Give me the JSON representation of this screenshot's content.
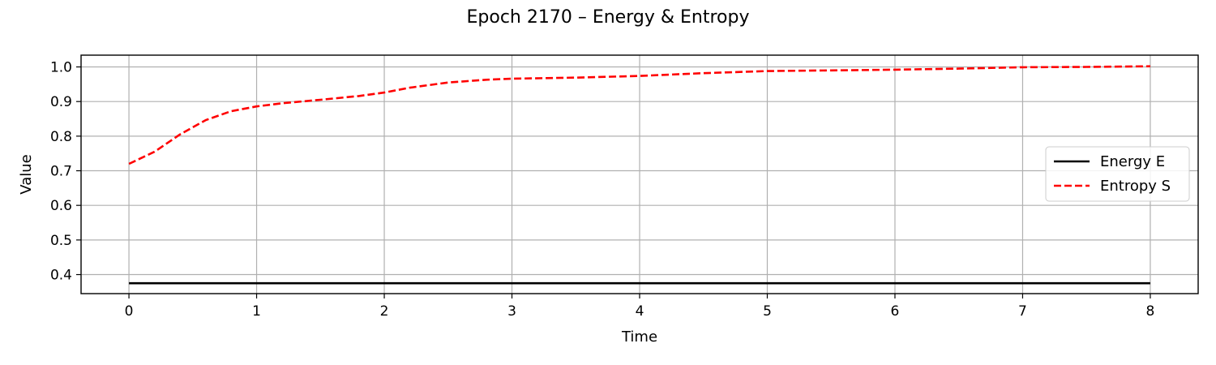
{
  "chart_data": {
    "type": "line",
    "title": "Epoch 2170 – Energy & Entropy",
    "xlabel": "Time",
    "ylabel": "Value",
    "xlim": [
      -0.375,
      8.375
    ],
    "ylim": [
      0.345,
      1.034
    ],
    "x_ticks": [
      0,
      1,
      2,
      3,
      4,
      5,
      6,
      7,
      8
    ],
    "y_ticks": [
      0.4,
      0.5,
      0.6,
      0.7,
      0.8,
      0.9,
      1.0
    ],
    "y_tick_labels": [
      "0.4",
      "0.5",
      "0.6",
      "0.7",
      "0.8",
      "0.9",
      "1.0"
    ],
    "grid": true,
    "legend_position": "center-right",
    "series": [
      {
        "name": "Energy E",
        "color": "#000000",
        "style": "solid",
        "x": [
          0,
          1,
          2,
          3,
          4,
          5,
          6,
          7,
          8
        ],
        "y": [
          0.375,
          0.375,
          0.375,
          0.375,
          0.375,
          0.375,
          0.375,
          0.375,
          0.375
        ]
      },
      {
        "name": "Entropy S",
        "color": "#ff0000",
        "style": "dashed",
        "x": [
          0.0,
          0.2,
          0.4,
          0.6,
          0.8,
          1.0,
          1.2,
          1.5,
          1.8,
          2.0,
          2.2,
          2.5,
          2.8,
          3.0,
          3.5,
          4.0,
          4.5,
          5.0,
          5.5,
          6.0,
          6.5,
          7.0,
          7.5,
          8.0
        ],
        "y": [
          0.72,
          0.755,
          0.805,
          0.846,
          0.872,
          0.886,
          0.895,
          0.905,
          0.916,
          0.926,
          0.94,
          0.955,
          0.963,
          0.966,
          0.969,
          0.974,
          0.982,
          0.988,
          0.99,
          0.992,
          0.995,
          0.999,
          1.0,
          1.002
        ]
      }
    ]
  }
}
